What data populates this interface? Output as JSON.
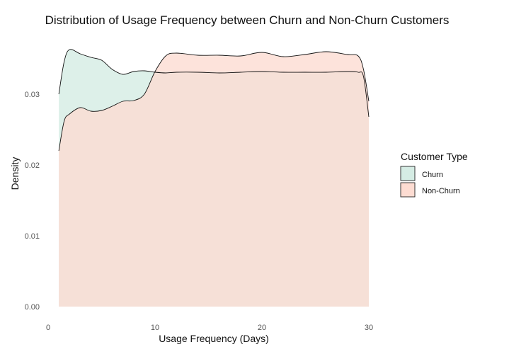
{
  "chart_data": {
    "type": "area",
    "title": "Distribution of Usage Frequency between Churn and Non-Churn Customers",
    "xlabel": "Usage Frequency (Days)",
    "ylabel": "Density",
    "xlim": [
      0,
      30
    ],
    "ylim": [
      0,
      0.0375
    ],
    "x_ticks": [
      0,
      10,
      20,
      30
    ],
    "x_tick_labels": [
      "0",
      "10",
      "20",
      "30"
    ],
    "y_ticks": [
      0,
      0.01,
      0.02,
      0.03
    ],
    "y_tick_labels": [
      "0.00",
      "0.01",
      "0.02",
      "0.03"
    ],
    "grid": false,
    "legend": {
      "title": "Customer Type",
      "position": "right"
    },
    "series": [
      {
        "name": "Churn",
        "color": "#d5ece4",
        "x": [
          1,
          1.5,
          2,
          3,
          4,
          5,
          6,
          7,
          8,
          9,
          10,
          11,
          12,
          14,
          16,
          18,
          20,
          22,
          24,
          26,
          28,
          29,
          29.5,
          30
        ],
        "y": [
          0.03,
          0.0346,
          0.0363,
          0.0357,
          0.0352,
          0.0348,
          0.0335,
          0.0328,
          0.0332,
          0.0333,
          0.0331,
          0.033,
          0.0331,
          0.0331,
          0.033,
          0.0331,
          0.0332,
          0.0331,
          0.0331,
          0.0331,
          0.0332,
          0.0331,
          0.0325,
          0.0268
        ]
      },
      {
        "name": "Non-Churn",
        "color": "#fddcd2",
        "x": [
          1,
          1.5,
          2,
          3,
          4,
          5,
          6,
          7,
          8,
          9,
          10,
          11,
          12,
          14,
          16,
          18,
          20,
          22,
          24,
          26,
          28,
          29,
          29.5,
          30
        ],
        "y": [
          0.022,
          0.0262,
          0.0272,
          0.0281,
          0.0276,
          0.0277,
          0.0283,
          0.029,
          0.0291,
          0.03,
          0.0332,
          0.0354,
          0.0358,
          0.0355,
          0.0355,
          0.0354,
          0.0359,
          0.0353,
          0.0356,
          0.036,
          0.0356,
          0.0354,
          0.0335,
          0.029
        ]
      }
    ]
  }
}
